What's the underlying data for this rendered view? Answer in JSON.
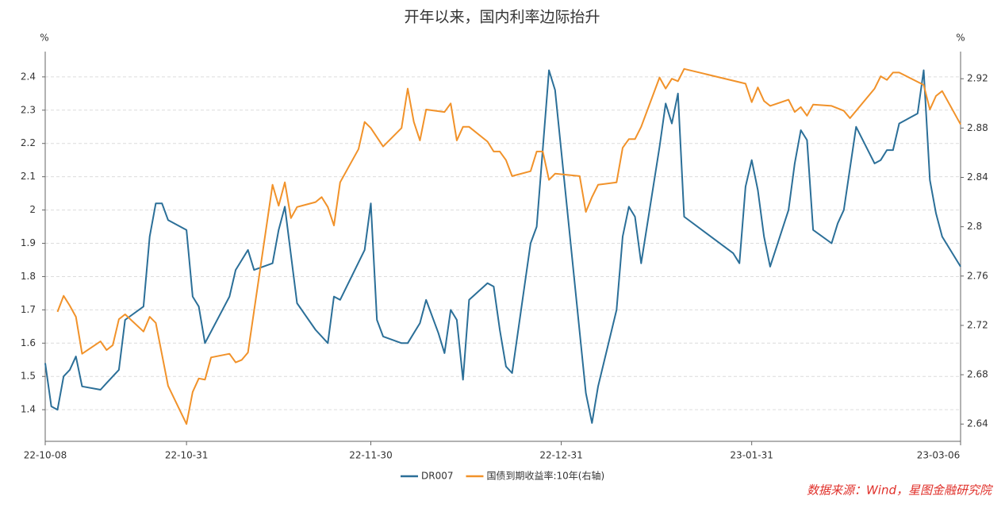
{
  "chart_data": {
    "type": "line",
    "title": "开年以来，国内利率边际抬升",
    "y_unit": "%",
    "y2_unit": "%",
    "source": "数据来源：Wind，星图金融研究院",
    "xlim": [
      0,
      149
    ],
    "xticks": [
      {
        "value": 0,
        "label": "22-10-08"
      },
      {
        "value": 23,
        "label": "22-10-31"
      },
      {
        "value": 53,
        "label": "22-11-30"
      },
      {
        "value": 84,
        "label": "22-12-31"
      },
      {
        "value": 115,
        "label": "23-01-31"
      },
      {
        "value": 149,
        "label": "23-03-06"
      }
    ],
    "ylim": [
      1.305,
      2.476
    ],
    "yticks": [
      1.4,
      1.5,
      1.6,
      1.7,
      1.8,
      1.9,
      2,
      2.1,
      2.2,
      2.3,
      2.4
    ],
    "y2lim": [
      2.626,
      2.942
    ],
    "y2ticks": [
      2.64,
      2.68,
      2.72,
      2.76,
      2.8,
      2.84,
      2.88,
      2.92
    ],
    "grid": true,
    "legend": "bottom",
    "series": [
      {
        "name": "DR007",
        "color": "#2b6f98",
        "x": [
          0,
          1,
          2,
          3,
          4,
          5,
          6,
          9,
          10,
          11,
          12,
          13,
          16,
          17,
          18,
          19,
          20,
          23,
          24,
          25,
          26,
          30,
          31,
          33,
          34,
          37,
          38,
          39,
          41,
          44,
          46,
          47,
          48,
          52,
          53,
          54,
          55,
          58,
          59,
          60,
          61,
          62,
          64,
          65,
          66,
          67,
          68,
          69,
          72,
          73,
          74,
          75,
          76,
          79,
          80,
          82,
          83,
          88,
          89,
          90,
          93,
          94,
          95,
          96,
          97,
          100,
          101,
          102,
          103,
          104,
          112,
          113,
          114,
          115,
          116,
          117,
          118,
          121,
          122,
          123,
          124,
          125,
          128,
          129,
          130,
          132,
          135,
          136,
          137,
          138,
          139,
          142,
          143,
          144,
          145,
          146,
          149
        ],
        "values": [
          1.54,
          1.41,
          1.4,
          1.5,
          1.52,
          1.56,
          1.47,
          1.46,
          1.48,
          1.5,
          1.52,
          1.67,
          1.71,
          1.92,
          2.02,
          2.02,
          1.97,
          1.94,
          1.74,
          1.71,
          1.6,
          1.74,
          1.82,
          1.88,
          1.82,
          1.84,
          1.94,
          2.01,
          1.72,
          1.64,
          1.6,
          1.74,
          1.73,
          1.88,
          2.02,
          1.67,
          1.62,
          1.6,
          1.6,
          1.63,
          1.66,
          1.73,
          1.63,
          1.57,
          1.7,
          1.67,
          1.49,
          1.73,
          1.78,
          1.77,
          1.64,
          1.53,
          1.51,
          1.9,
          1.95,
          2.42,
          2.36,
          1.45,
          1.36,
          1.47,
          1.7,
          1.92,
          2.01,
          1.98,
          1.84,
          2.19,
          2.32,
          2.26,
          2.35,
          1.98,
          1.87,
          1.84,
          2.07,
          2.15,
          2.06,
          1.92,
          1.83,
          2.0,
          2.14,
          2.24,
          2.21,
          1.94,
          1.9,
          1.96,
          2.0,
          2.25,
          2.14,
          2.15,
          2.18,
          2.18,
          2.26,
          2.29,
          2.42,
          2.09,
          1.99,
          1.92,
          1.83
        ]
      },
      {
        "name": "国债到期收益率:10年(右轴)",
        "color": "#f1922a",
        "axis": "y2",
        "x": [
          2,
          3,
          4,
          5,
          6,
          9,
          10,
          11,
          12,
          13,
          16,
          17,
          18,
          20,
          23,
          24,
          25,
          26,
          27,
          30,
          31,
          32,
          33,
          37,
          38,
          39,
          40,
          41,
          44,
          45,
          46,
          47,
          48,
          51,
          52,
          53,
          55,
          58,
          59,
          60,
          61,
          62,
          65,
          66,
          67,
          68,
          69,
          72,
          73,
          74,
          75,
          76,
          79,
          80,
          81,
          82,
          83,
          87,
          88,
          89,
          90,
          93,
          94,
          95,
          96,
          97,
          100,
          101,
          102,
          103,
          104,
          114,
          115,
          116,
          117,
          118,
          121,
          122,
          123,
          124,
          125,
          128,
          130,
          131,
          135,
          136,
          137,
          138,
          139,
          143,
          144,
          145,
          146,
          149
        ],
        "values": [
          2.731,
          2.744,
          2.736,
          2.727,
          2.697,
          2.707,
          2.7,
          2.704,
          2.725,
          2.729,
          2.715,
          2.727,
          2.722,
          2.671,
          2.64,
          2.666,
          2.677,
          2.676,
          2.694,
          2.697,
          2.69,
          2.692,
          2.698,
          2.834,
          2.817,
          2.836,
          2.807,
          2.816,
          2.82,
          2.824,
          2.816,
          2.801,
          2.836,
          2.863,
          2.885,
          2.88,
          2.865,
          2.88,
          2.912,
          2.885,
          2.87,
          2.895,
          2.893,
          2.9,
          2.87,
          2.881,
          2.881,
          2.869,
          2.861,
          2.861,
          2.854,
          2.841,
          2.845,
          2.861,
          2.861,
          2.838,
          2.843,
          2.841,
          2.812,
          2.824,
          2.834,
          2.836,
          2.864,
          2.871,
          2.871,
          2.881,
          2.921,
          2.912,
          2.92,
          2.918,
          2.928,
          2.916,
          2.901,
          2.913,
          2.902,
          2.898,
          2.903,
          2.893,
          2.897,
          2.89,
          2.899,
          2.898,
          2.894,
          2.888,
          2.912,
          2.922,
          2.919,
          2.925,
          2.925,
          2.915,
          2.895,
          2.906,
          2.91,
          2.883
        ]
      }
    ]
  }
}
